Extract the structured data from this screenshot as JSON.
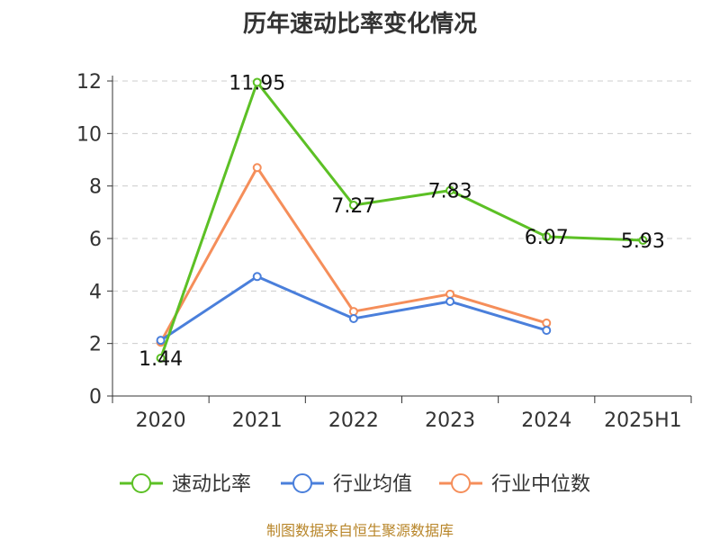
{
  "footer": "制图数据来自恒生聚源数据库",
  "chart_data": {
    "type": "line",
    "title": "历年速动比率变化情况",
    "categories": [
      "2020",
      "2021",
      "2022",
      "2023",
      "2024",
      "2025H1"
    ],
    "ylim": [
      0,
      12
    ],
    "yticks": [
      0,
      2,
      4,
      6,
      8,
      10,
      12
    ],
    "grid": true,
    "legend_position": "bottom",
    "series": [
      {
        "name": "速动比率",
        "color": "#5cc025",
        "labels": true,
        "values": [
          1.44,
          11.95,
          7.27,
          7.83,
          6.07,
          5.93
        ]
      },
      {
        "name": "行业均值",
        "color": "#4a7fdb",
        "labels": false,
        "values": [
          2.12,
          4.55,
          2.95,
          3.6,
          2.5,
          null
        ]
      },
      {
        "name": "行业中位数",
        "color": "#f58e5a",
        "labels": false,
        "values": [
          2.05,
          8.7,
          3.22,
          3.88,
          2.78,
          null
        ]
      }
    ]
  }
}
